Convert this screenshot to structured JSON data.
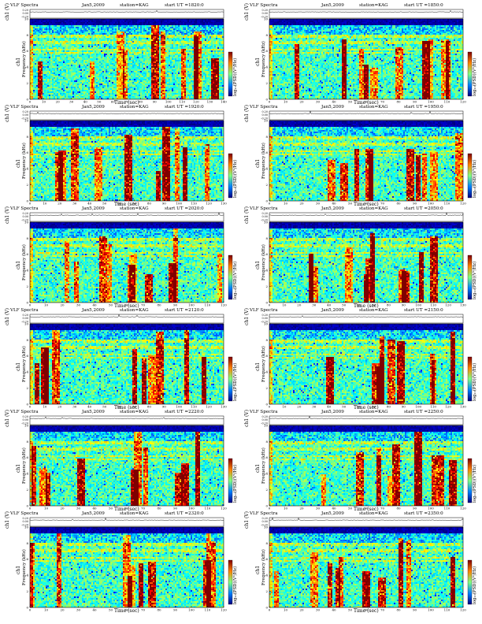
{
  "figure": {
    "header_left": "VLF Spectra",
    "date": "Jan5,2009",
    "station": "station=KAG",
    "start_prefix": "start  UT  =",
    "channel_label": "ch1 (V)",
    "spec_channel": "ch1",
    "freq_label": "Frequency (kHz)",
    "time_label": "Time  (sec)",
    "colorbar_label": "log₁₀(PSD)(V²/Hz)",
    "waveform_ticks": [
      "0.20",
      "0.00",
      "-0.20"
    ]
  },
  "chart_data": [
    {
      "type": "heatmap",
      "start_ut": "1820:0",
      "xlim": [
        0,
        140
      ],
      "ylim": [
        0,
        10
      ],
      "xticks": [
        0,
        10,
        20,
        30,
        40,
        50,
        60,
        70,
        80,
        90,
        100,
        110,
        120,
        130,
        140
      ],
      "yticks": [
        0,
        2,
        4,
        6,
        8,
        10
      ]
    },
    {
      "type": "heatmap",
      "start_ut": "1850:0",
      "xlim": [
        0,
        120
      ],
      "ylim": [
        0,
        10
      ],
      "xticks": [
        0,
        10,
        20,
        30,
        40,
        50,
        60,
        70,
        80,
        90,
        100,
        110,
        120
      ],
      "yticks": [
        0,
        2,
        4,
        6,
        8,
        10
      ]
    },
    {
      "type": "heatmap",
      "start_ut": "1920:0",
      "xlim": [
        0,
        130
      ],
      "ylim": [
        0,
        10
      ],
      "xticks": [
        0,
        10,
        20,
        30,
        40,
        50,
        60,
        70,
        80,
        90,
        100,
        110,
        120,
        130
      ],
      "yticks": [
        0,
        2,
        4,
        6,
        8,
        10
      ]
    },
    {
      "type": "heatmap",
      "start_ut": "1950:0",
      "xlim": [
        0,
        120
      ],
      "ylim": [
        0,
        10
      ],
      "xticks": [
        0,
        10,
        20,
        30,
        40,
        50,
        60,
        70,
        80,
        90,
        100,
        110,
        120
      ],
      "yticks": [
        0,
        2,
        4,
        6,
        8,
        10
      ]
    },
    {
      "type": "heatmap",
      "start_ut": "2020:0",
      "xlim": [
        0,
        120
      ],
      "ylim": [
        0,
        10
      ],
      "xticks": [
        0,
        10,
        20,
        30,
        40,
        50,
        60,
        70,
        80,
        90,
        100,
        110,
        120
      ],
      "yticks": [
        0,
        2,
        4,
        6,
        8,
        10
      ]
    },
    {
      "type": "heatmap",
      "start_ut": "2050:0",
      "xlim": [
        0,
        130
      ],
      "ylim": [
        0,
        10
      ],
      "xticks": [
        0,
        10,
        20,
        30,
        40,
        50,
        60,
        70,
        80,
        90,
        100,
        110,
        120,
        130
      ],
      "yticks": [
        0,
        2,
        4,
        6,
        8,
        10
      ]
    },
    {
      "type": "heatmap",
      "start_ut": "2120:0",
      "xlim": [
        0,
        130
      ],
      "ylim": [
        0,
        10
      ],
      "xticks": [
        0,
        10,
        20,
        30,
        40,
        50,
        60,
        70,
        80,
        90,
        100,
        110,
        120,
        130
      ],
      "yticks": [
        0,
        2,
        4,
        6,
        8,
        10
      ]
    },
    {
      "type": "heatmap",
      "start_ut": "2150:0",
      "xlim": [
        0,
        130
      ],
      "ylim": [
        0,
        10
      ],
      "xticks": [
        0,
        10,
        20,
        30,
        40,
        50,
        60,
        70,
        80,
        90,
        100,
        110,
        120,
        130
      ],
      "yticks": [
        0,
        2,
        4,
        6,
        8,
        10
      ]
    },
    {
      "type": "heatmap",
      "start_ut": "2220:0",
      "xlim": [
        0,
        120
      ],
      "ylim": [
        0,
        10
      ],
      "xticks": [
        0,
        10,
        20,
        30,
        40,
        50,
        60,
        70,
        80,
        90,
        100,
        110,
        120
      ],
      "yticks": [
        0,
        2,
        4,
        6,
        8,
        10
      ]
    },
    {
      "type": "heatmap",
      "start_ut": "2250:0",
      "xlim": [
        0,
        120
      ],
      "ylim": [
        0,
        10
      ],
      "xticks": [
        0,
        10,
        20,
        30,
        40,
        50,
        60,
        70,
        80,
        90,
        100,
        110,
        120
      ],
      "yticks": [
        0,
        2,
        4,
        6,
        8,
        10
      ]
    },
    {
      "type": "heatmap",
      "start_ut": "2320:0",
      "xlim": [
        0,
        120
      ],
      "ylim": [
        0,
        10
      ],
      "xticks": [
        0,
        10,
        20,
        30,
        40,
        50,
        60,
        70,
        80,
        90,
        100,
        110,
        120
      ],
      "yticks": [
        0,
        2,
        4,
        6,
        8,
        10
      ]
    },
    {
      "type": "heatmap",
      "start_ut": "2350:0",
      "xlim": [
        0,
        120
      ],
      "ylim": [
        0,
        10
      ],
      "xticks": [
        0,
        10,
        20,
        30,
        40,
        50,
        60,
        70,
        80,
        90,
        100,
        110,
        120
      ],
      "yticks": [
        0,
        2,
        4,
        6,
        8,
        10
      ]
    }
  ]
}
